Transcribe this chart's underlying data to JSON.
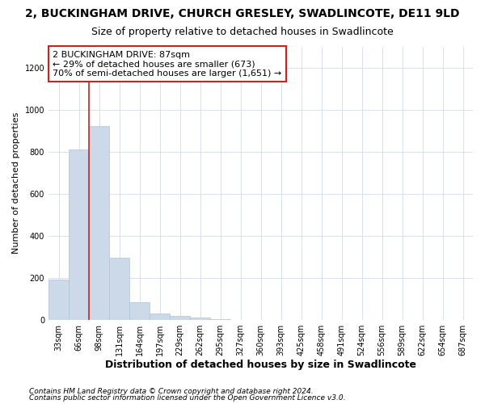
{
  "title": "2, BUCKINGHAM DRIVE, CHURCH GRESLEY, SWADLINCOTE, DE11 9LD",
  "subtitle": "Size of property relative to detached houses in Swadlincote",
  "xlabel": "Distribution of detached houses by size in Swadlincote",
  "ylabel": "Number of detached properties",
  "categories": [
    "33sqm",
    "66sqm",
    "98sqm",
    "131sqm",
    "164sqm",
    "197sqm",
    "229sqm",
    "262sqm",
    "295sqm",
    "327sqm",
    "360sqm",
    "393sqm",
    "425sqm",
    "458sqm",
    "491sqm",
    "524sqm",
    "556sqm",
    "589sqm",
    "622sqm",
    "654sqm",
    "687sqm"
  ],
  "values": [
    193,
    810,
    920,
    295,
    85,
    33,
    18,
    10,
    3,
    0,
    0,
    0,
    0,
    0,
    0,
    0,
    0,
    0,
    0,
    0,
    0
  ],
  "bar_color": "#ccd9e8",
  "bar_edge_color": "#b0c4d8",
  "grid_color": "#d8e0ec",
  "property_line_color": "#cc2222",
  "annotation_text": "2 BUCKINGHAM DRIVE: 87sqm\n← 29% of detached houses are smaller (673)\n70% of semi-detached houses are larger (1,651) →",
  "annotation_box_color": "#ffffff",
  "annotation_box_edge": "#cc2222",
  "ylim": [
    0,
    1300
  ],
  "yticks": [
    0,
    200,
    400,
    600,
    800,
    1000,
    1200
  ],
  "footnote1": "Contains HM Land Registry data © Crown copyright and database right 2024.",
  "footnote2": "Contains public sector information licensed under the Open Government Licence v3.0.",
  "title_fontsize": 10,
  "subtitle_fontsize": 9,
  "xlabel_fontsize": 9,
  "ylabel_fontsize": 8,
  "tick_fontsize": 7,
  "annotation_fontsize": 8,
  "footnote_fontsize": 6.5,
  "prop_line_index": 2
}
